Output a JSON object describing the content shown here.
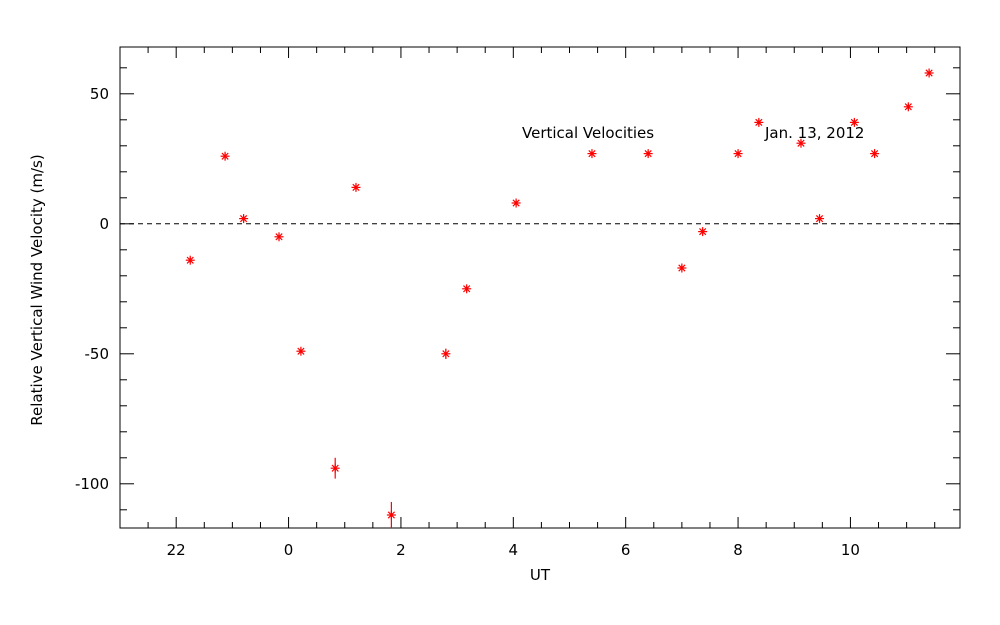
{
  "chart_data": {
    "type": "scatter",
    "title": "Vertical Velocities",
    "subtitle": "Jan. 13, 2012",
    "xlabel": "UT",
    "ylabel": "Relative Vertical Wind Velocity (m/s)",
    "x_domain": [
      21.0,
      11.95
    ],
    "x_ticks": [
      22,
      0,
      2,
      4,
      6,
      8,
      10
    ],
    "ylim": [
      -117,
      68
    ],
    "y_ticks": [
      50,
      0,
      -50,
      -100
    ],
    "zero_line": "dashed",
    "marker": "asterisk",
    "color": "#ff0000",
    "series": [
      {
        "points": [
          {
            "x": 22.25,
            "y": -14,
            "err": 1
          },
          {
            "x": 22.87,
            "y": 26,
            "err": 1
          },
          {
            "x": 23.2,
            "y": 2,
            "err": 1
          },
          {
            "x": 23.83,
            "y": -5,
            "err": 1
          },
          {
            "x": 0.22,
            "y": -49,
            "err": 1
          },
          {
            "x": 0.83,
            "y": -94,
            "err": 4
          },
          {
            "x": 1.2,
            "y": 14,
            "err": 1
          },
          {
            "x": 1.83,
            "y": -112,
            "err": 5
          },
          {
            "x": 2.8,
            "y": -50,
            "err": 2
          },
          {
            "x": 3.17,
            "y": -25,
            "err": 1
          },
          {
            "x": 4.05,
            "y": 8,
            "err": 1
          },
          {
            "x": 5.4,
            "y": 27,
            "err": 1
          },
          {
            "x": 6.4,
            "y": 27,
            "err": 1
          },
          {
            "x": 7.0,
            "y": -17,
            "err": 1
          },
          {
            "x": 7.37,
            "y": -3,
            "err": 1
          },
          {
            "x": 8.0,
            "y": 27,
            "err": 1
          },
          {
            "x": 8.37,
            "y": 39,
            "err": 1
          },
          {
            "x": 9.12,
            "y": 31,
            "err": 1
          },
          {
            "x": 9.45,
            "y": 2,
            "err": 1
          },
          {
            "x": 10.07,
            "y": 39,
            "err": 1
          },
          {
            "x": 10.43,
            "y": 27,
            "err": 1
          },
          {
            "x": 11.03,
            "y": 45,
            "err": 1
          },
          {
            "x": 11.4,
            "y": 58,
            "err": 1
          }
        ]
      }
    ]
  }
}
